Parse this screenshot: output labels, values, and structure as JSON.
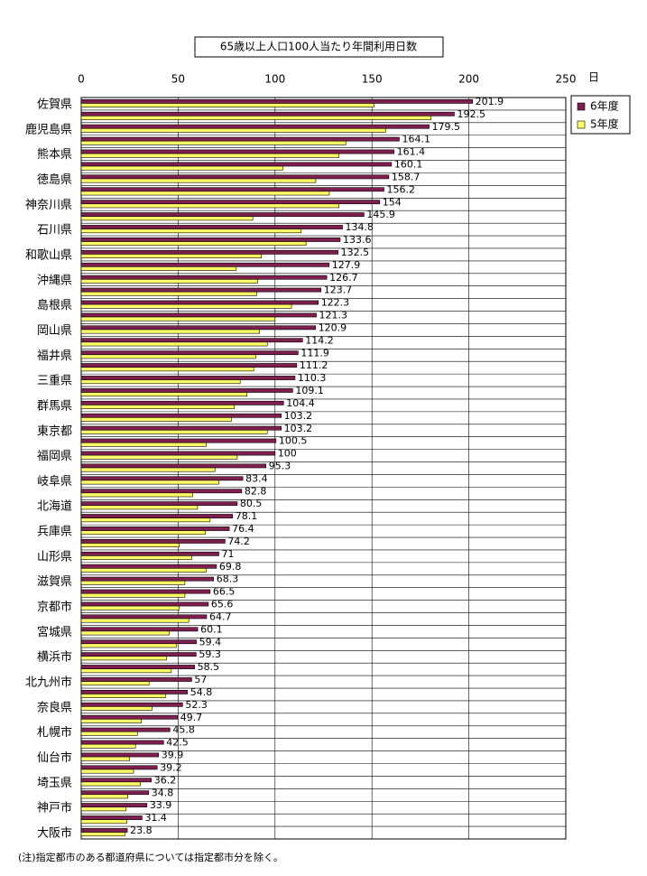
{
  "chart_data": {
    "type": "bar",
    "orientation": "horizontal",
    "title": "65歳以上人口100人当たり年間利用日数",
    "value_unit": "日",
    "note": "(注)指定都市のある都道府県については指定都市分を除く。",
    "categories": [
      "佐賀県",
      null,
      "鹿児島県",
      null,
      "熊本県",
      null,
      "徳島県",
      null,
      "神奈川県",
      null,
      "石川県",
      null,
      "和歌山県",
      null,
      "沖縄県",
      null,
      "島根県",
      null,
      "岡山県",
      null,
      "福井県",
      null,
      "三重県",
      null,
      "群馬県",
      null,
      "東京都",
      null,
      "福岡県",
      null,
      "岐阜県",
      null,
      "北海道",
      null,
      "兵庫県",
      null,
      "山形県",
      null,
      "滋賀県",
      null,
      "京都市",
      null,
      "宮城県",
      null,
      "横浜市",
      null,
      "北九州市",
      null,
      "奈良県",
      null,
      "札幌市",
      null,
      "仙台市",
      null,
      "埼玉県",
      null,
      "神戸市",
      null,
      "大阪市"
    ],
    "series": [
      {
        "name": "6年度",
        "color": "#7f1f4f",
        "values": [
          201.9,
          192.5,
          179.5,
          164.1,
          161.4,
          160.1,
          158.7,
          156.2,
          154,
          145.9,
          134.8,
          133.6,
          132.5,
          127.9,
          126.7,
          123.7,
          122.3,
          121.3,
          120.9,
          114.2,
          111.9,
          111.2,
          110.3,
          109.1,
          104.4,
          103.2,
          103.2,
          100.5,
          100,
          95.3,
          83.4,
          82.8,
          80.5,
          78.1,
          76.4,
          74.2,
          71,
          69.8,
          68.3,
          66.5,
          65.6,
          64.7,
          60.1,
          59.4,
          59.3,
          58.5,
          57,
          54.8,
          52.3,
          49.7,
          45.8,
          42.5,
          39.9,
          39.2,
          36.2,
          34.8,
          33.9,
          31.4,
          23.8
        ]
      },
      {
        "name": "5年度",
        "color": "#ffff66",
        "values": [
          151,
          180.5,
          157,
          136.5,
          133,
          104,
          121,
          128,
          133,
          88.5,
          113.5,
          116,
          93,
          80,
          91,
          90.5,
          108.5,
          100,
          92,
          96,
          90,
          89,
          82,
          85.5,
          79,
          77.5,
          96,
          64.5,
          80.5,
          69,
          71,
          57.5,
          60,
          66.5,
          64,
          50.5,
          57,
          64.5,
          53.5,
          53.5,
          50.5,
          55.5,
          45.5,
          49,
          44,
          46.5,
          35,
          43.5,
          36.5,
          31,
          29,
          28,
          25,
          27,
          30.5,
          24,
          23,
          23.5,
          22.5
        ]
      }
    ],
    "xlim": [
      0,
      250
    ],
    "xticks": [
      0,
      50,
      100,
      150,
      200,
      250
    ],
    "grid": true,
    "legend": "right"
  }
}
